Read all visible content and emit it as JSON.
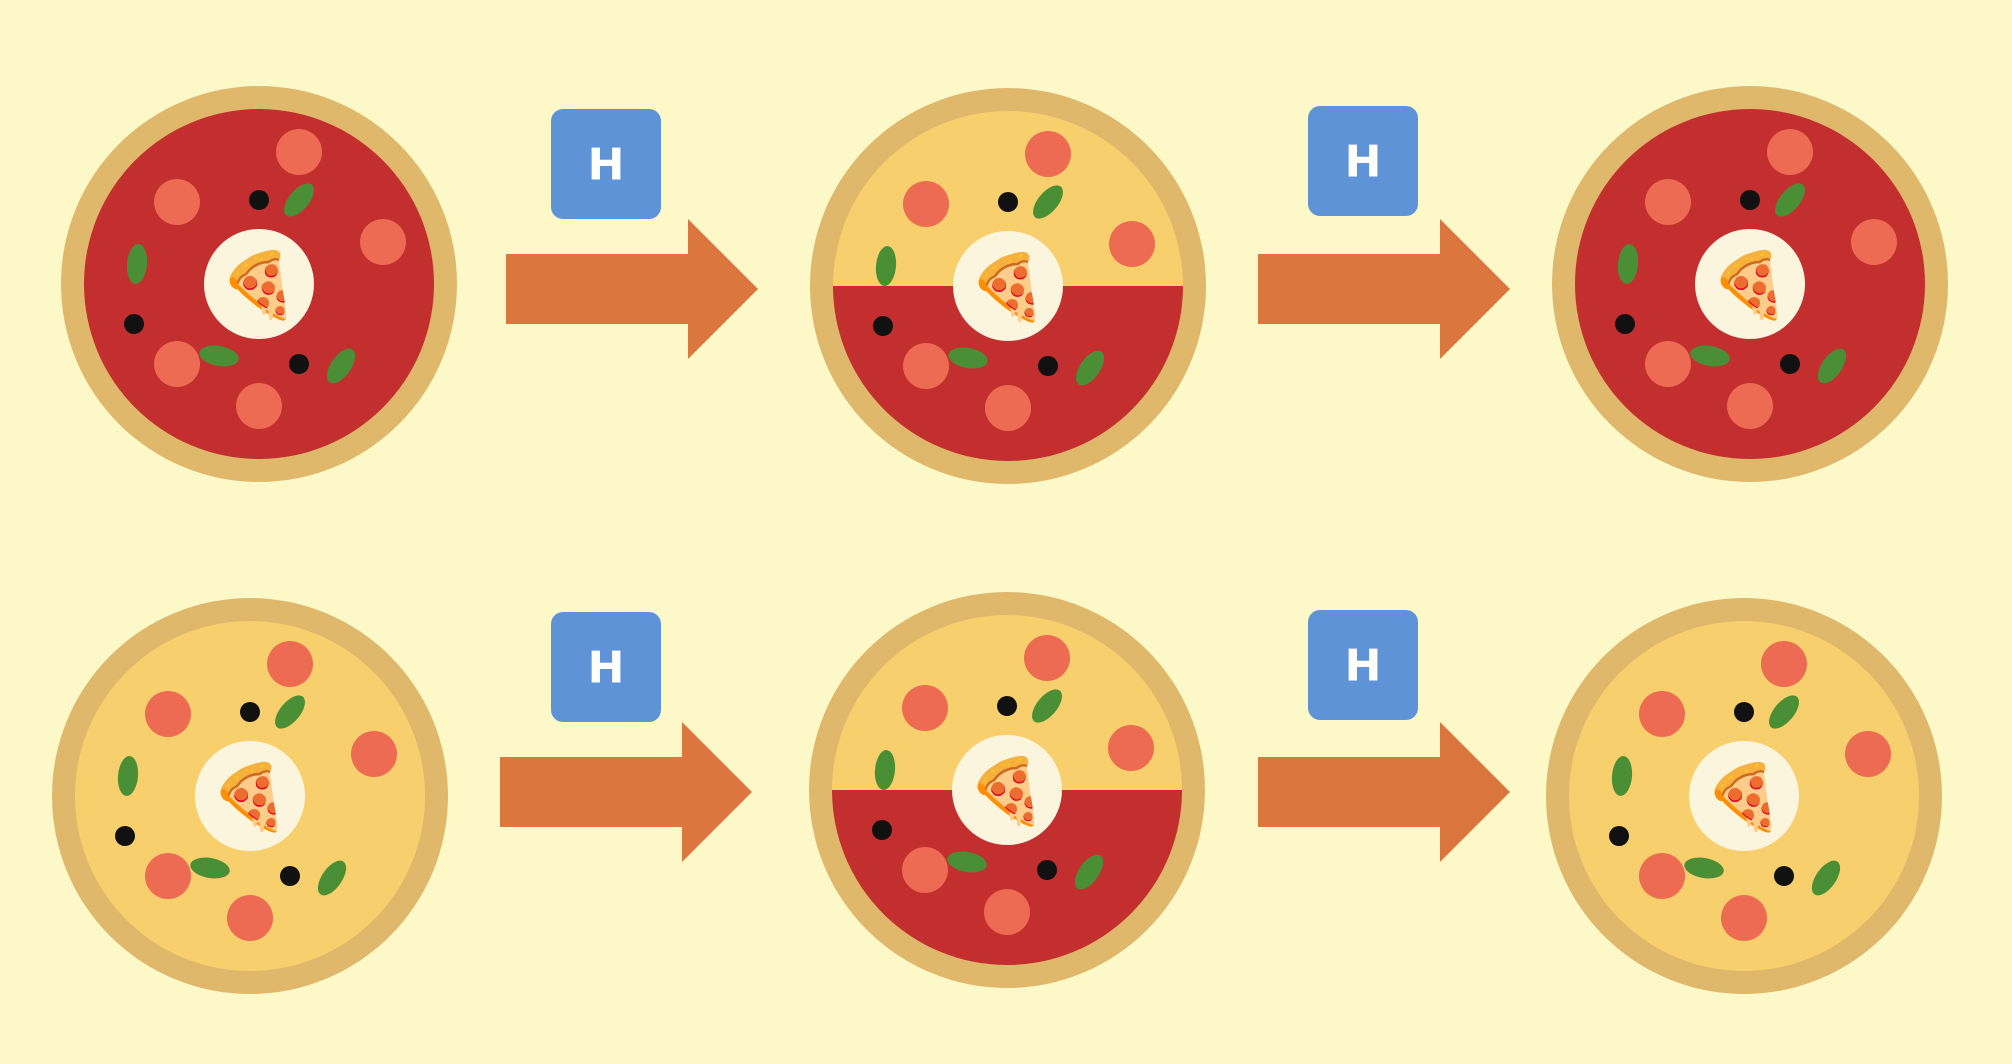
{
  "colors": {
    "background": "#fdf8c7",
    "crust": "#e0b86c",
    "tomato_sauce": "#c32e2e",
    "cheese_sauce": "#f7cf6c",
    "pepperoni": "#ec6b52",
    "basil": "#4a8f35",
    "olive": "#111111",
    "center_plate": "#fbf5de",
    "arrow": "#db763f",
    "gate_box": "#5f93d7",
    "gate_text": "#ffffff"
  },
  "gates": [
    {
      "label": "H"
    },
    {
      "label": "H"
    },
    {
      "label": "H"
    },
    {
      "label": "H"
    }
  ],
  "rows": [
    {
      "pizzas": [
        {
          "sauce_state": "tomato",
          "center_icon": "🍕"
        },
        {
          "sauce_state": "half-cheese-top-half-tomato-bottom",
          "center_icon": "🍕"
        },
        {
          "sauce_state": "tomato",
          "center_icon": "🍕"
        }
      ]
    },
    {
      "pizzas": [
        {
          "sauce_state": "cheese",
          "center_icon": "🍕"
        },
        {
          "sauce_state": "half-cheese-top-half-tomato-bottom",
          "center_icon": "🍕"
        },
        {
          "sauce_state": "cheese",
          "center_icon": "🍕"
        }
      ]
    }
  ]
}
